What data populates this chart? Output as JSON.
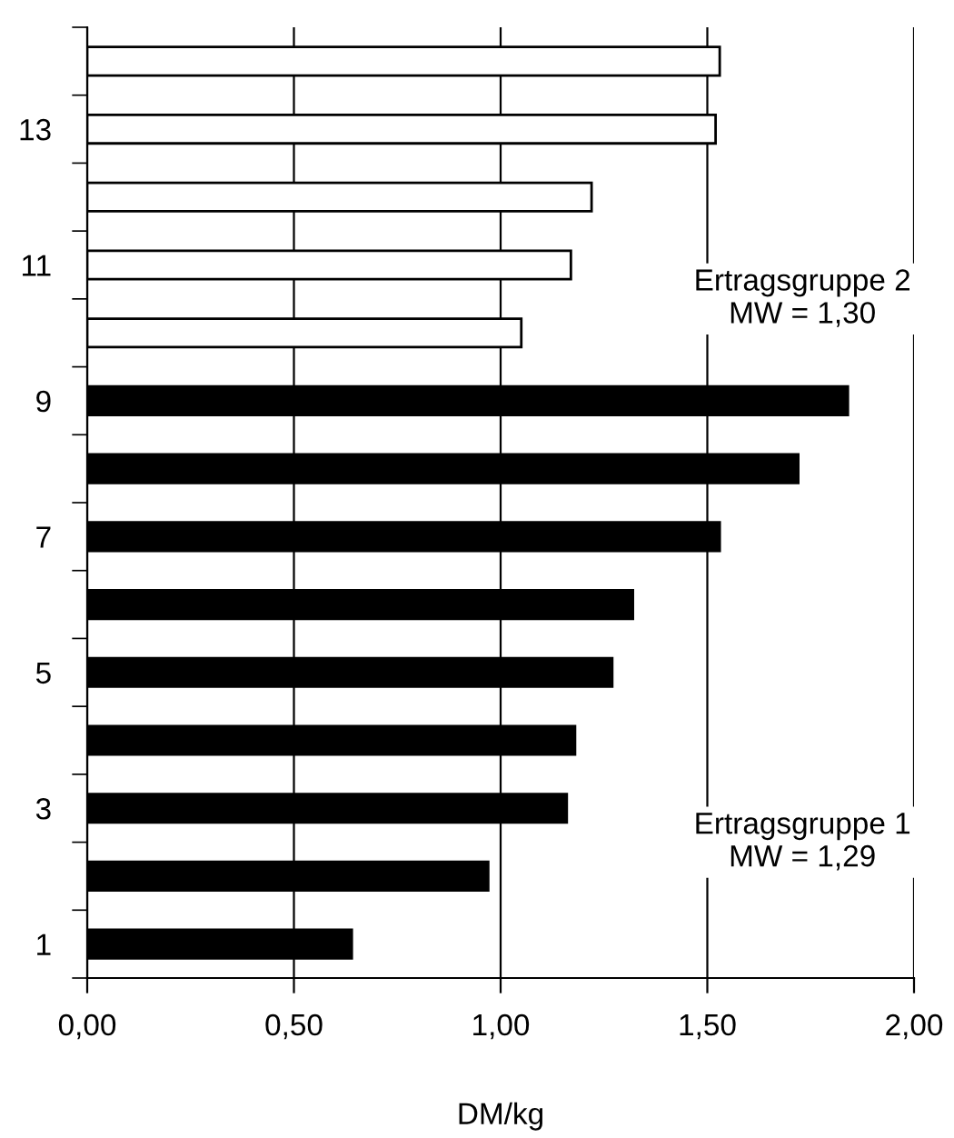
{
  "chart_data": {
    "type": "bar",
    "orientation": "horizontal",
    "xlabel": "DM/kg",
    "categories": [
      null,
      "13",
      null,
      "11",
      null,
      "9",
      null,
      "7",
      null,
      "5",
      null,
      "3",
      null,
      "1"
    ],
    "values": [
      1.53,
      1.52,
      1.22,
      1.17,
      1.05,
      1.84,
      1.72,
      1.53,
      1.32,
      1.27,
      1.18,
      1.16,
      0.97,
      0.64
    ],
    "colors": [
      "#ffffff",
      "#ffffff",
      "#ffffff",
      "#ffffff",
      "#ffffff",
      "#000000",
      "#000000",
      "#000000",
      "#000000",
      "#000000",
      "#000000",
      "#000000",
      "#000000",
      "#000000"
    ],
    "xlim": [
      0,
      2
    ],
    "xticks": [
      {
        "value": 0,
        "label": "0,00"
      },
      {
        "value": 0.5,
        "label": "0,50"
      },
      {
        "value": 1,
        "label": "1,00"
      },
      {
        "value": 1.5,
        "label": "1,50"
      },
      {
        "value": 2,
        "label": "2,00"
      }
    ],
    "grid": "x",
    "annotations": [
      "Ertragsgruppe 2\nMW = 1,30",
      "Ertragsgruppe 1\nMW = 1,29"
    ]
  }
}
